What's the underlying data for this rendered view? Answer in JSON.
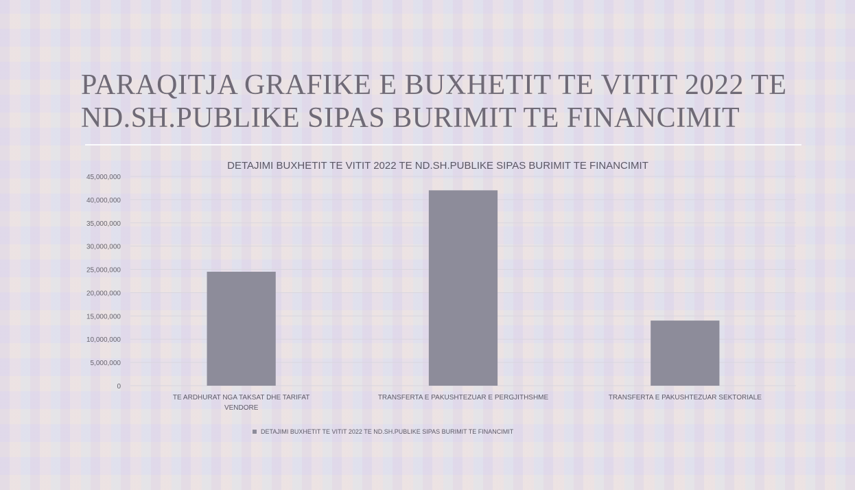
{
  "slide": {
    "title": "PARAQITJA GRAFIKE E BUXHETIT TE VITIT 2022 TE ND.SH.PUBLIKE SIPAS BURIMIT TE FINANCIMIT"
  },
  "chart_data": {
    "type": "bar",
    "title": "DETAJIMI BUXHETIT TE VITIT 2022 TE ND.SH.PUBLIKE SIPAS BURIMIT TE FINANCIMIT",
    "categories": [
      [
        "TE ARDHURAT NGA TAKSAT DHE TARIFAT",
        "VENDORE"
      ],
      [
        "TRANSFERTA E PAKUSHTEZUAR E PERGJITHSHME"
      ],
      [
        "TRANSFERTA E PAKUSHTEZUAR SEKTORIALE"
      ]
    ],
    "series": [
      {
        "name": "DETAJIMI BUXHETIT TE VITIT 2022 TE ND.SH.PUBLIKE SIPAS BURIMIT TE FINANCIMIT",
        "values": [
          24500000,
          42000000,
          14000000
        ]
      }
    ],
    "ylim": [
      0,
      45000000
    ],
    "yticks": [
      "0",
      "5,000,000",
      "10,000,000",
      "15,000,000",
      "20,000,000",
      "25,000,000",
      "30,000,000",
      "35,000,000",
      "40,000,000",
      "45,000,000"
    ],
    "grid": true,
    "legend": "bottom",
    "colors": {
      "bar": "#8d8c9a",
      "grid": "#d9d6df",
      "text": "#5d5a66"
    }
  }
}
